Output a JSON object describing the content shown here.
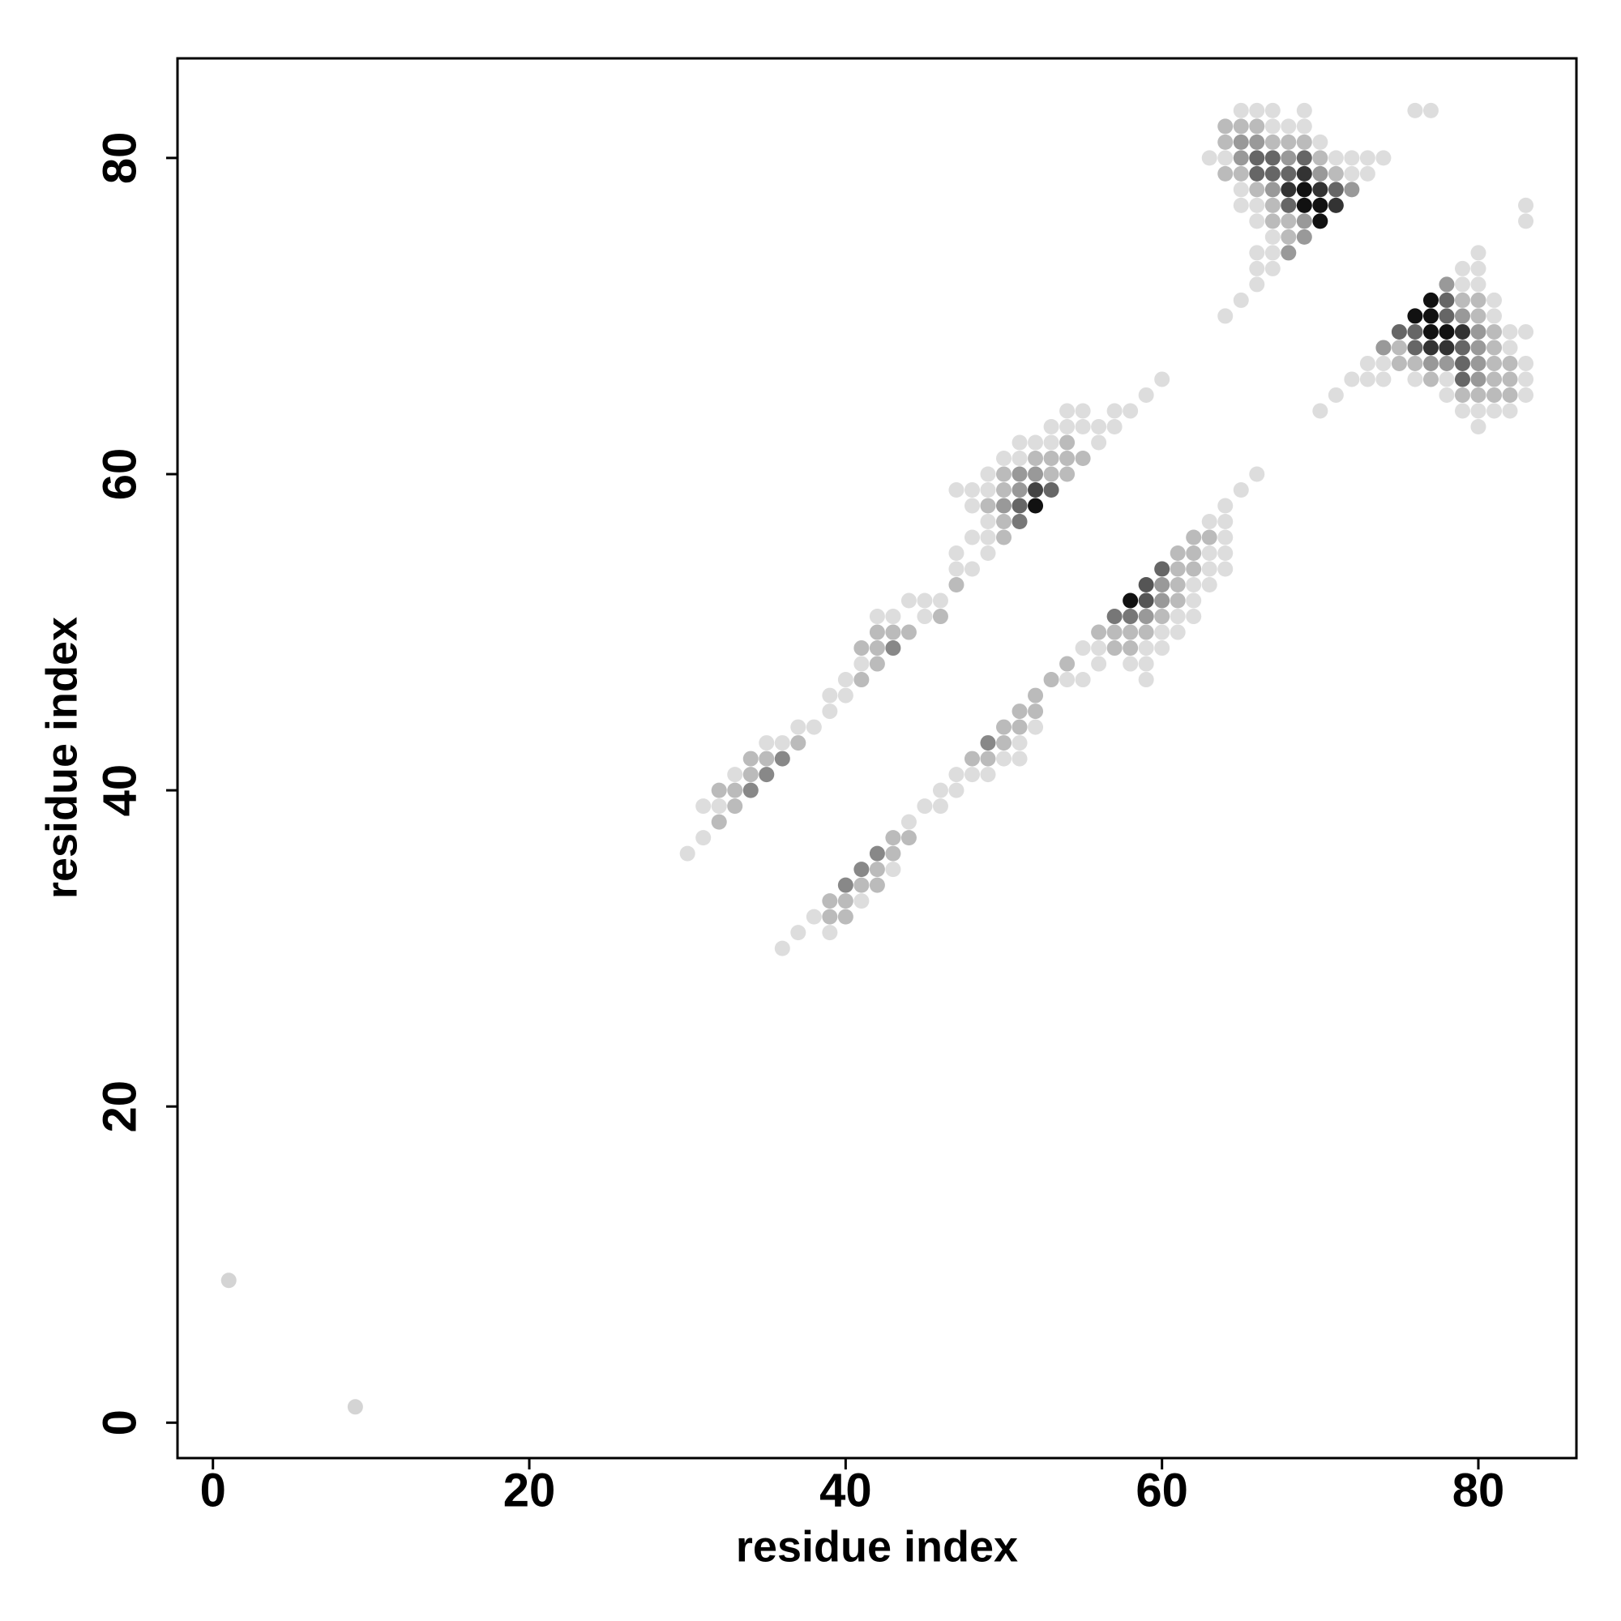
{
  "chart_data": {
    "type": "scatter",
    "x_label": "residue index",
    "y_label": "residue index",
    "xlim": [
      -2.24,
      86.2
    ],
    "ylim": [
      -2.24,
      86.3
    ],
    "xticks": [
      0,
      20,
      40,
      60,
      80
    ],
    "yticks": [
      0,
      20,
      40,
      60,
      80
    ],
    "x": [
      1,
      9,
      36,
      37,
      39,
      38,
      39,
      40,
      39,
      40,
      41,
      40,
      41,
      42,
      41,
      42,
      43,
      42,
      43,
      43,
      44,
      44,
      45,
      46,
      46,
      47,
      47,
      48,
      49,
      48,
      49,
      50,
      51,
      49,
      50,
      51,
      50,
      51,
      52,
      51,
      52,
      52,
      53,
      54,
      55,
      59,
      54,
      56,
      58,
      59,
      55,
      56,
      57,
      58,
      59,
      60,
      56,
      57,
      58,
      59,
      60,
      61,
      57,
      58,
      59,
      60,
      61,
      62,
      58,
      59,
      60,
      61,
      62,
      59,
      60,
      61,
      62,
      63,
      60,
      61,
      62,
      63,
      64,
      61,
      62,
      63,
      64,
      62,
      63,
      64,
      63,
      64,
      64,
      65,
      66,
      30,
      31,
      32,
      31,
      32,
      33,
      32,
      33,
      34,
      33,
      34,
      35,
      34,
      35,
      36,
      35,
      36,
      37,
      37,
      38,
      39,
      39,
      40,
      40,
      41,
      41,
      42,
      41,
      42,
      43,
      42,
      43,
      44,
      42,
      43,
      45,
      46,
      44,
      45,
      46,
      47,
      47,
      48,
      47,
      49,
      48,
      49,
      50,
      49,
      50,
      51,
      48,
      49,
      50,
      51,
      52,
      47,
      48,
      49,
      50,
      51,
      52,
      53,
      49,
      50,
      51,
      52,
      53,
      54,
      50,
      51,
      52,
      53,
      54,
      55,
      51,
      52,
      53,
      54,
      56,
      53,
      54,
      55,
      56,
      57,
      54,
      55,
      57,
      58,
      59,
      60,
      65,
      66,
      67,
      69,
      76,
      77,
      64,
      65,
      66,
      67,
      68,
      69,
      64,
      65,
      66,
      67,
      68,
      69,
      70,
      63,
      64,
      65,
      66,
      67,
      68,
      69,
      70,
      71,
      72,
      73,
      74,
      64,
      65,
      66,
      67,
      68,
      69,
      70,
      71,
      72,
      73,
      65,
      66,
      67,
      68,
      69,
      70,
      71,
      72,
      65,
      66,
      67,
      68,
      69,
      70,
      71,
      66,
      67,
      68,
      69,
      70,
      67,
      68,
      69,
      66,
      67,
      68,
      66,
      67,
      66,
      65,
      64,
      83,
      83,
      80,
      79,
      80,
      78,
      79,
      80,
      77,
      78,
      79,
      80,
      81,
      76,
      77,
      78,
      79,
      80,
      81,
      75,
      76,
      77,
      78,
      79,
      80,
      81,
      82,
      83,
      74,
      75,
      76,
      77,
      78,
      79,
      80,
      81,
      82,
      73,
      74,
      75,
      76,
      77,
      78,
      79,
      80,
      81,
      82,
      83,
      72,
      73,
      74,
      76,
      77,
      78,
      79,
      80,
      81,
      82,
      83,
      71,
      78,
      79,
      80,
      81,
      82,
      83,
      70,
      79,
      80,
      81,
      82,
      80
    ],
    "values": [
      9,
      1,
      30,
      31,
      31,
      32,
      32,
      32,
      33,
      33,
      33,
      34,
      34,
      34,
      35,
      35,
      35,
      36,
      36,
      37,
      37,
      38,
      39,
      39,
      40,
      40,
      41,
      41,
      41,
      42,
      42,
      42,
      42,
      43,
      43,
      43,
      44,
      44,
      44,
      45,
      45,
      46,
      47,
      47,
      47,
      47,
      48,
      48,
      48,
      48,
      49,
      49,
      49,
      49,
      49,
      49,
      50,
      50,
      50,
      50,
      50,
      50,
      51,
      51,
      51,
      51,
      51,
      51,
      52,
      52,
      52,
      52,
      52,
      53,
      53,
      53,
      53,
      53,
      54,
      54,
      54,
      54,
      54,
      55,
      55,
      55,
      55,
      56,
      56,
      56,
      57,
      57,
      58,
      59,
      60,
      36,
      37,
      38,
      39,
      39,
      39,
      40,
      40,
      40,
      41,
      41,
      41,
      42,
      42,
      42,
      43,
      43,
      43,
      44,
      44,
      45,
      46,
      46,
      47,
      47,
      48,
      48,
      49,
      49,
      49,
      50,
      50,
      50,
      51,
      51,
      51,
      51,
      52,
      52,
      52,
      53,
      54,
      54,
      55,
      55,
      56,
      56,
      56,
      57,
      57,
      57,
      58,
      58,
      58,
      58,
      58,
      59,
      59,
      59,
      59,
      59,
      59,
      59,
      60,
      60,
      60,
      60,
      60,
      60,
      61,
      61,
      61,
      61,
      61,
      61,
      62,
      62,
      62,
      62,
      62,
      63,
      63,
      63,
      63,
      63,
      64,
      64,
      64,
      64,
      65,
      66,
      83,
      83,
      83,
      83,
      83,
      83,
      82,
      82,
      82,
      82,
      82,
      82,
      81,
      81,
      81,
      81,
      81,
      81,
      81,
      80,
      80,
      80,
      80,
      80,
      80,
      80,
      80,
      80,
      80,
      80,
      80,
      79,
      79,
      79,
      79,
      79,
      79,
      79,
      79,
      79,
      79,
      78,
      78,
      78,
      78,
      78,
      78,
      78,
      78,
      77,
      77,
      77,
      77,
      77,
      77,
      77,
      76,
      76,
      76,
      76,
      76,
      75,
      75,
      75,
      74,
      74,
      74,
      73,
      73,
      72,
      71,
      70,
      77,
      76,
      74,
      73,
      73,
      72,
      72,
      72,
      71,
      71,
      71,
      71,
      71,
      70,
      70,
      70,
      70,
      70,
      70,
      69,
      69,
      69,
      69,
      69,
      69,
      69,
      69,
      69,
      68,
      68,
      68,
      68,
      68,
      68,
      68,
      68,
      68,
      67,
      67,
      67,
      67,
      67,
      67,
      67,
      67,
      67,
      67,
      67,
      66,
      66,
      66,
      66,
      66,
      66,
      66,
      66,
      66,
      66,
      66,
      65,
      65,
      65,
      65,
      65,
      65,
      65,
      64,
      64,
      64,
      64,
      64,
      63
    ],
    "colors": [
      "#d4d4d4",
      "#d4d4d4",
      "#ddd",
      "#ddd",
      "#ddd",
      "#ddd",
      "#bbb",
      "#bbb",
      "#bbb",
      "#bbb",
      "#ddd",
      "#888",
      "#bbb",
      "#bbb",
      "#888",
      "#bbb",
      "#ddd",
      "#888",
      "#bbb",
      "#bbb",
      "#bbb",
      "#ddd",
      "#ddd",
      "#ddd",
      "#ddd",
      "#ddd",
      "#ddd",
      "#ddd",
      "#ddd",
      "#bbb",
      "#bbb",
      "#ddd",
      "#ddd",
      "#888",
      "#bbb",
      "#ddd",
      "#bbb",
      "#bbb",
      "#ddd",
      "#bbb",
      "#bbb",
      "#bbb",
      "#bbb",
      "#ddd",
      "#ddd",
      "#ddd",
      "#bbb",
      "#ddd",
      "#ddd",
      "#ddd",
      "#ddd",
      "#ddd",
      "#bbb",
      "#bbb",
      "#ddd",
      "#ddd",
      "#bbb",
      "#bbb",
      "#bbb",
      "#bbb",
      "#ddd",
      "#ddd",
      "#777",
      "#777",
      "#999",
      "#bbb",
      "#ddd",
      "#ddd",
      "#111",
      "#555",
      "#999",
      "#bbb",
      "#ddd",
      "#555",
      "#999",
      "#bbb",
      "#ddd",
      "#ddd",
      "#666",
      "#bbb",
      "#bbb",
      "#ddd",
      "#ddd",
      "#bbb",
      "#bbb",
      "#ddd",
      "#ddd",
      "#bbb",
      "#bbb",
      "#ddd",
      "#ddd",
      "#ddd",
      "#ddd",
      "#ddd",
      "#ddd",
      "#ddd",
      "#ddd",
      "#bbb",
      "#ddd",
      "#ddd",
      "#bbb",
      "#bbb",
      "#bbb",
      "#888",
      "#ddd",
      "#bbb",
      "#888",
      "#bbb",
      "#bbb",
      "#888",
      "#ddd",
      "#ddd",
      "#bbb",
      "#ddd",
      "#ddd",
      "#ddd",
      "#ddd",
      "#ddd",
      "#ddd",
      "#bbb",
      "#ddd",
      "#bbb",
      "#bbb",
      "#bbb",
      "#888",
      "#bbb",
      "#bbb",
      "#bbb",
      "#ddd",
      "#ddd",
      "#ddd",
      "#bbb",
      "#ddd",
      "#ddd",
      "#ddd",
      "#bbb",
      "#ddd",
      "#ddd",
      "#ddd",
      "#ddd",
      "#ddd",
      "#ddd",
      "#bbb",
      "#ddd",
      "#bbb",
      "#777",
      "#ddd",
      "#bbb",
      "#999",
      "#666",
      "#111",
      "#ddd",
      "#ddd",
      "#ddd",
      "#bbb",
      "#999",
      "#444",
      "#666",
      "#ddd",
      "#bbb",
      "#999",
      "#999",
      "#bbb",
      "#bbb",
      "#ddd",
      "#ddd",
      "#bbb",
      "#bbb",
      "#bbb",
      "#bbb",
      "#ddd",
      "#ddd",
      "#ddd",
      "#bbb",
      "#ddd",
      "#ddd",
      "#ddd",
      "#ddd",
      "#ddd",
      "#ddd",
      "#ddd",
      "#ddd",
      "#ddd",
      "#ddd",
      "#ddd",
      "#ddd",
      "#ddd",
      "#ddd",
      "#ddd",
      "#ddd",
      "#ddd",
      "#ddd",
      "#bbb",
      "#bbb",
      "#bbb",
      "#ddd",
      "#ddd",
      "#ddd",
      "#bbb",
      "#999",
      "#999",
      "#bbb",
      "#bbb",
      "#bbb",
      "#ddd",
      "#ddd",
      "#ddd",
      "#999",
      "#666",
      "#666",
      "#999",
      "#666",
      "#bbb",
      "#ddd",
      "#ddd",
      "#ddd",
      "#ddd",
      "#bbb",
      "#bbb",
      "#666",
      "#666",
      "#666",
      "#333",
      "#999",
      "#bbb",
      "#ddd",
      "#ddd",
      "#ddd",
      "#bbb",
      "#999",
      "#333",
      "#111",
      "#333",
      "#666",
      "#999",
      "#ddd",
      "#ddd",
      "#bbb",
      "#666",
      "#111",
      "#111",
      "#333",
      "#ddd",
      "#bbb",
      "#bbb",
      "#999",
      "#111",
      "#ddd",
      "#bbb",
      "#999",
      "#ddd",
      "#ddd",
      "#999",
      "#ddd",
      "#ddd",
      "#ddd",
      "#ddd",
      "#ddd",
      "#ddd",
      "#ddd",
      "#ddd",
      "#ddd",
      "#ddd",
      "#999",
      "#ddd",
      "#ddd",
      "#111",
      "#666",
      "#bbb",
      "#bbb",
      "#ddd",
      "#111",
      "#111",
      "#666",
      "#999",
      "#bbb",
      "#ddd",
      "#666",
      "#666",
      "#111",
      "#111",
      "#333",
      "#999",
      "#bbb",
      "#ddd",
      "#ddd",
      "#999",
      "#bbb",
      "#666",
      "#333",
      "#333",
      "#666",
      "#999",
      "#bbb",
      "#ddd",
      "#ddd",
      "#ddd",
      "#bbb",
      "#bbb",
      "#999",
      "#999",
      "#666",
      "#999",
      "#bbb",
      "#bbb",
      "#ddd",
      "#ddd",
      "#ddd",
      "#ddd",
      "#ddd",
      "#bbb",
      "#ddd",
      "#666",
      "#999",
      "#bbb",
      "#bbb",
      "#ddd",
      "#ddd",
      "#ddd",
      "#bbb",
      "#bbb",
      "#bbb",
      "#bbb",
      "#ddd",
      "#ddd",
      "#ddd",
      "#ddd",
      "#ddd",
      "#ddd",
      "#ddd"
    ]
  }
}
